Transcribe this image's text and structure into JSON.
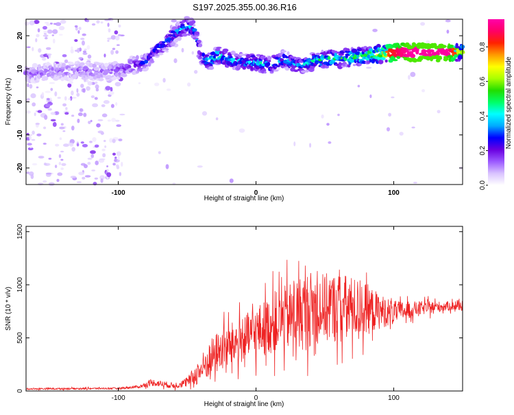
{
  "figure": {
    "title": "S197.2025.355.00.36.R16"
  },
  "chart_data": [
    {
      "type": "heatmap",
      "title": "S197.2025.355.00.36.R16",
      "xlabel": "Height of straight line (km)",
      "ylabel": "Frequency (Hz)",
      "xlim": [
        -167,
        150
      ],
      "ylim": [
        -25,
        25
      ],
      "x_ticks": [
        -100,
        0,
        100
      ],
      "y_ticks": [
        20,
        10,
        0,
        -10,
        -20
      ],
      "colorbar": {
        "label": "Normalized spectral amplitude",
        "range": [
          0,
          0.96
        ],
        "ticks": [
          0,
          0.2,
          0.4,
          0.6,
          0.8
        ],
        "colors": [
          "#ffffff",
          "#d9c3ff",
          "#9b59ff",
          "#6a00e0",
          "#0000ff",
          "#00aaff",
          "#00ffff",
          "#00ff66",
          "#22dd00",
          "#aaff00",
          "#ffff00",
          "#ff9900",
          "#ff2200",
          "#ff0066",
          "#ff00aa"
        ]
      },
      "ridge": {
        "name": "dominant frequency ridge",
        "x": [
          -167,
          -150,
          -130,
          -110,
          -97,
          -90,
          -80,
          -72,
          -65,
          -58,
          -50,
          -45,
          -40,
          -35,
          -28,
          -20,
          -10,
          0,
          10,
          20,
          30,
          40,
          50,
          60,
          70,
          80,
          90,
          100,
          110,
          120,
          130,
          140,
          150
        ],
        "y": [
          8.5,
          9,
          9.5,
          9,
          10,
          11,
          12,
          16,
          18,
          21,
          23,
          22,
          14,
          12,
          14,
          13,
          12,
          12,
          11,
          13,
          11,
          12,
          13,
          13,
          13.5,
          14,
          14.5,
          15,
          15,
          15,
          15,
          15,
          15
        ],
        "amp": [
          0.15,
          0.15,
          0.15,
          0.15,
          0.18,
          0.22,
          0.28,
          0.3,
          0.32,
          0.35,
          0.38,
          0.35,
          0.3,
          0.42,
          0.48,
          0.42,
          0.35,
          0.45,
          0.38,
          0.38,
          0.35,
          0.42,
          0.5,
          0.5,
          0.55,
          0.6,
          0.72,
          0.85,
          0.95,
          0.95,
          0.95,
          0.95,
          0.6
        ]
      }
    },
    {
      "type": "line",
      "xlabel": "Height of straight line (km)",
      "ylabel": "SNR (10 * v/v)",
      "xlim": [
        -167,
        150
      ],
      "ylim": [
        0,
        1550
      ],
      "x_ticks": [
        -100,
        0,
        100
      ],
      "y_ticks": [
        0,
        500,
        1000,
        1500
      ],
      "series": [
        {
          "name": "SNR",
          "color": "#ee2222",
          "envelope": {
            "x": [
              -167,
              -100,
              -85,
              -75,
              -60,
              -50,
              -40,
              -30,
              -20,
              -10,
              0,
              10,
              20,
              30,
              40,
              50,
              60,
              70,
              80,
              90,
              100,
              110,
              120,
              130,
              140,
              150
            ],
            "mean": [
              20,
              25,
              40,
              80,
              50,
              80,
              200,
              350,
              420,
              480,
              550,
              620,
              680,
              720,
              780,
              780,
              790,
              780,
              770,
              750,
              740,
              760,
              780,
              790,
              800,
              800
            ],
            "spread": [
              15,
              15,
              25,
              60,
              50,
              80,
              250,
              350,
              380,
              400,
              450,
              500,
              550,
              650,
              650,
              600,
              600,
              550,
              450,
              300,
              200,
              150,
              120,
              100,
              80,
              80
            ]
          }
        }
      ]
    }
  ]
}
